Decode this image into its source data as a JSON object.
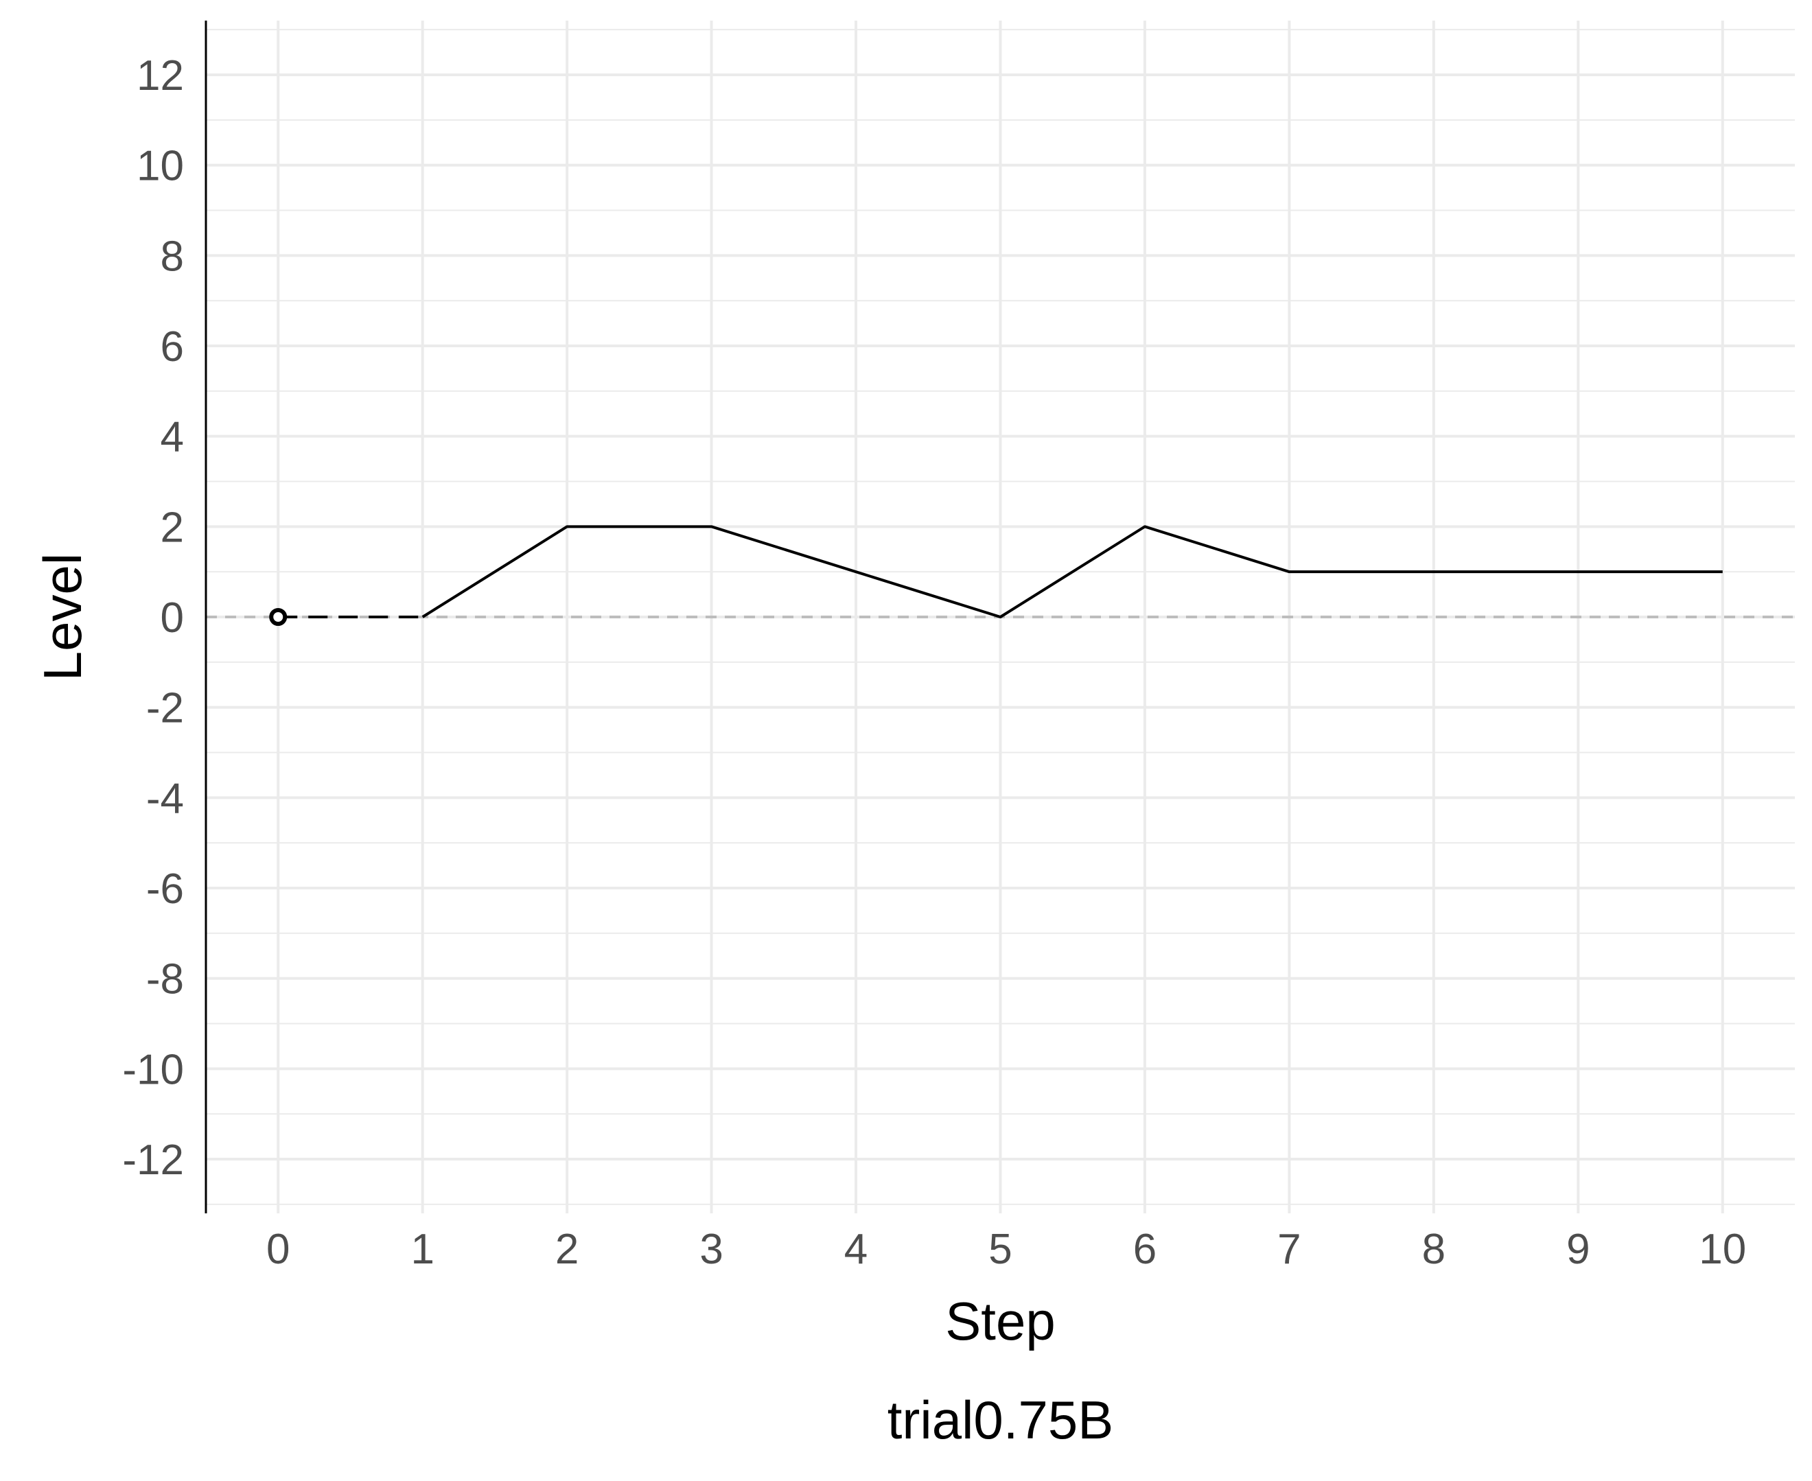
{
  "chart_data": {
    "type": "line",
    "xlabel": "Step",
    "ylabel": "Level",
    "caption": "trial0.75B",
    "xlim": [
      -0.5,
      10.5
    ],
    "ylim": [
      -13.2,
      13.2
    ],
    "x_ticks": [
      0,
      1,
      2,
      3,
      4,
      5,
      6,
      7,
      8,
      9,
      10
    ],
    "x_tick_labels": [
      "0",
      "1",
      "2",
      "3",
      "4",
      "5",
      "6",
      "7",
      "8",
      "9",
      "10"
    ],
    "y_ticks": [
      12,
      10,
      8,
      6,
      4,
      2,
      0,
      -2,
      -4,
      -6,
      -8,
      -10,
      -12
    ],
    "y_tick_labels": [
      "12",
      "10",
      "8",
      "6",
      "4",
      "2",
      "0",
      "-2",
      "-4",
      "-6",
      "-8",
      "-10",
      "-12"
    ],
    "y_minor_ticks": [
      13,
      11,
      9,
      7,
      5,
      3,
      1,
      -1,
      -3,
      -5,
      -7,
      -9,
      -11,
      -13
    ],
    "grid": true,
    "reference_line": {
      "y": 0,
      "style": "dashed",
      "color": "#bdbdbd"
    },
    "start_segment": {
      "x": [
        0,
        1
      ],
      "y": [
        0,
        0
      ],
      "style": "dashed"
    },
    "start_point": {
      "x": 0,
      "y": 0
    },
    "series": [
      {
        "x": [
          1,
          2,
          3,
          4,
          5,
          6,
          7,
          8,
          9,
          10
        ],
        "y": [
          0,
          2,
          2,
          1,
          0,
          2,
          1,
          1,
          1,
          1
        ],
        "color": "#000000"
      }
    ],
    "colors": {
      "grid": "#ebebeb",
      "axis": "#000000",
      "line": "#000000",
      "reference": "#bdbdbd"
    }
  }
}
